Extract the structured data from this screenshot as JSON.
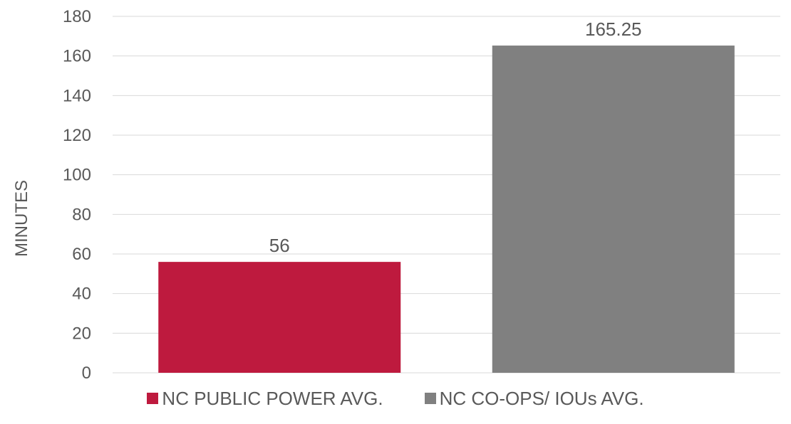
{
  "chart_data": {
    "type": "bar",
    "categories": [
      "NC PUBLIC POWER AVG.",
      "NC CO-OPS/ IOUs AVG."
    ],
    "values": [
      56,
      165.25
    ],
    "data_labels": [
      "56",
      "165.25"
    ],
    "colors": [
      "#be1a3e",
      "#808080"
    ],
    "title": "",
    "xlabel": "",
    "ylabel": "MINUTES",
    "ylim": [
      0,
      180
    ],
    "yticks": [
      0,
      20,
      40,
      60,
      80,
      100,
      120,
      140,
      160,
      180
    ],
    "grid": true,
    "legend_position": "bottom"
  }
}
